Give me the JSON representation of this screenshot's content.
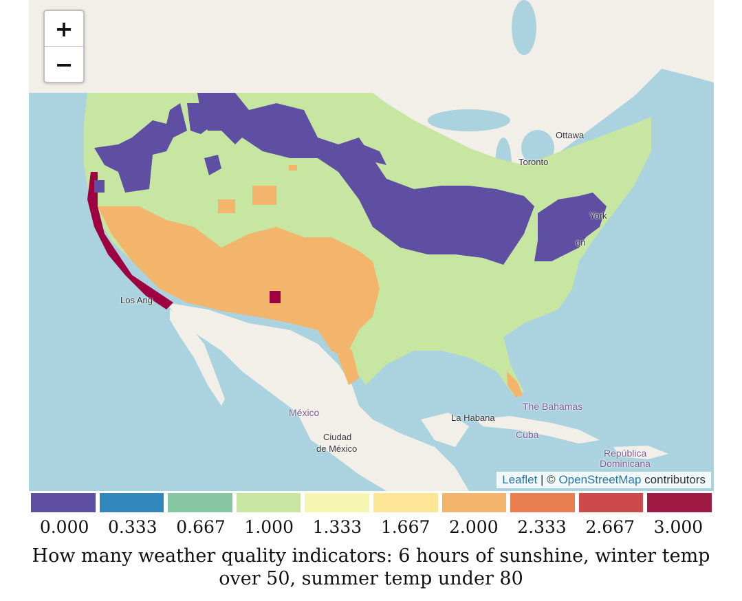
{
  "map": {
    "zoom_in_label": "+",
    "zoom_out_label": "−",
    "attribution": {
      "leaflet": "Leaflet",
      "separator": " | © ",
      "osm": "OpenStreetMap",
      "contributors": " contributors"
    },
    "place_labels": {
      "ottawa": "Ottawa",
      "toronto": "Toronto",
      "york": "York",
      "on": "on",
      "los_angeles": "Los Ang",
      "mexico": "México",
      "ciudad": "Ciudad",
      "de_mexico": "de México",
      "la_habana": "La Habana",
      "bahamas": "The Bahamas",
      "cuba": "Cuba",
      "republica": "República",
      "dominicana": "Dominicana"
    },
    "colors": {
      "water": "#aad3df",
      "land": "#f2efe9",
      "purple": "#5e4fa2",
      "green": "#c7e6a2",
      "orange": "#f3b56b",
      "red": "#9e0142"
    }
  },
  "legend": {
    "colors": [
      "#5e4fa2",
      "#3288bd",
      "#87c8a3",
      "#c7e6a2",
      "#f4f6b2",
      "#fce594",
      "#f3b56b",
      "#e87d50",
      "#cd4a4c",
      "#9e1a44"
    ],
    "ticks": [
      "0.000",
      "0.333",
      "0.667",
      "1.000",
      "1.333",
      "1.667",
      "2.000",
      "2.333",
      "2.667",
      "3.000"
    ]
  },
  "caption": {
    "line1": "How many weather quality indicators: 6 hours of sunshine, winter temp",
    "line2": "over 50, summer temp under 80"
  }
}
